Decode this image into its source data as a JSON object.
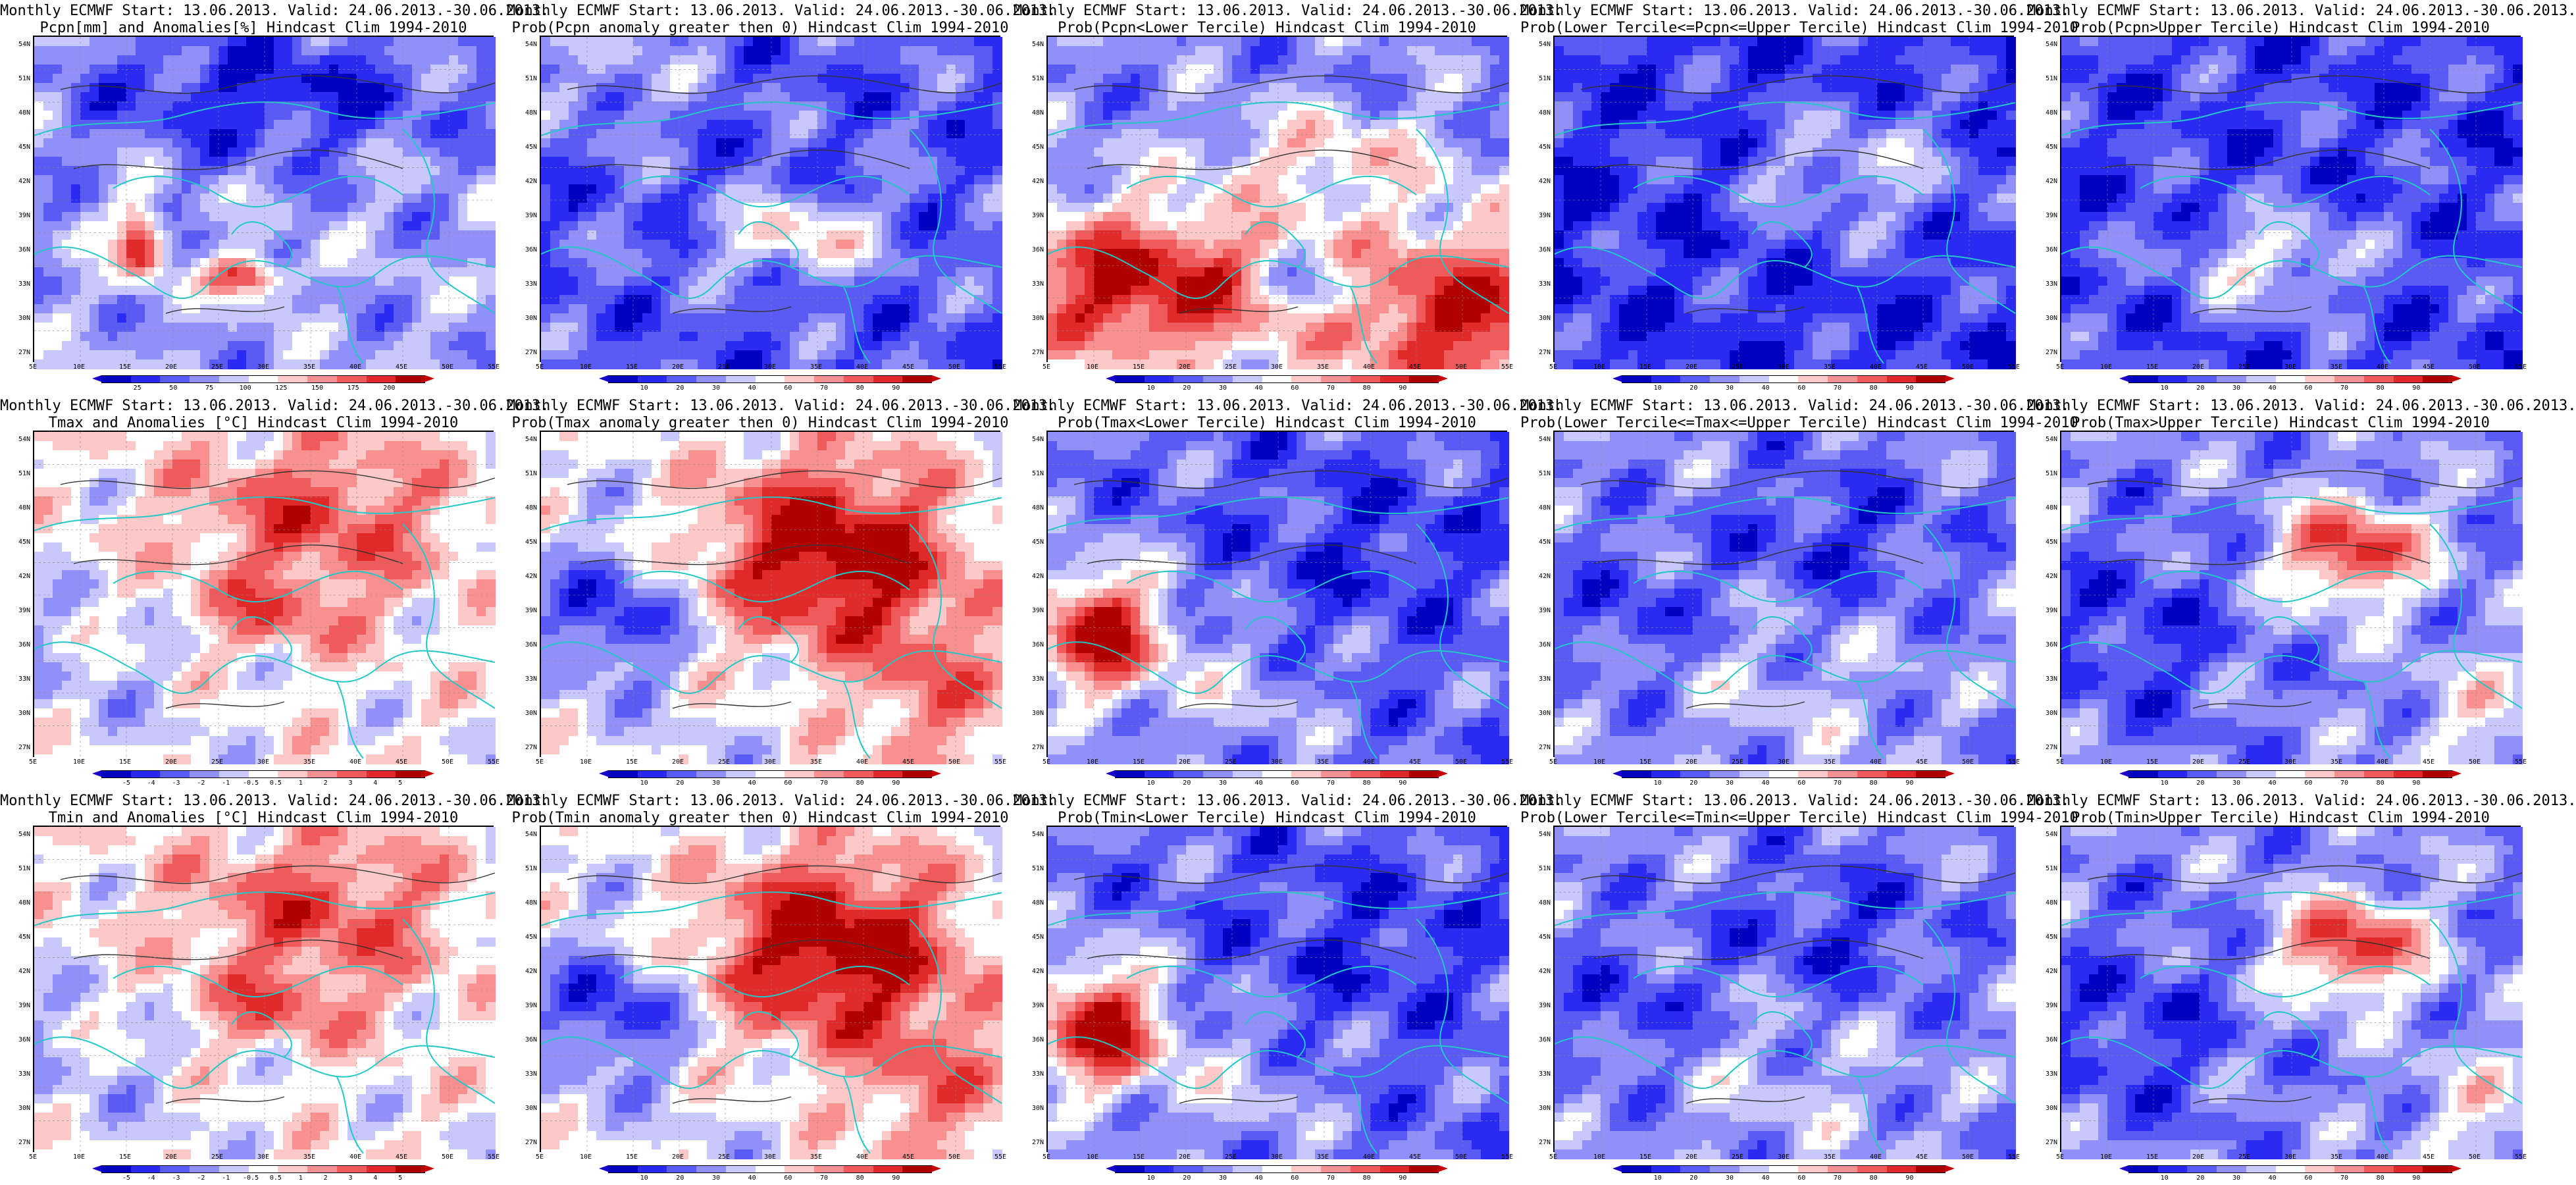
{
  "meta": {
    "coast_color": "#22c8c8",
    "contour_color": "#333333"
  },
  "axes": {
    "lat_labels": [
      "54N",
      "51N",
      "48N",
      "45N",
      "42N",
      "39N",
      "36N",
      "33N",
      "30N",
      "27N"
    ],
    "lon_labels": [
      "5E",
      "10E",
      "15E",
      "20E",
      "25E",
      "30E",
      "35E",
      "40E",
      "45E",
      "50E",
      "55E"
    ]
  },
  "panels": [
    {
      "line1": "Monthly ECMWF Start: 13.06.2013. Valid: 24.06.2013.-30.06.2013.",
      "line2": "Pcpn[mm] and Anomalies[%] Hindcast Clim 1994-2010",
      "kind": "anom",
      "pattern": "pcpn-anom",
      "ticks": [
        "25",
        "50",
        "75",
        "100",
        "125",
        "150",
        "175",
        "200"
      ]
    },
    {
      "line1": "Monthly ECMWF Start: 13.06.2013. Valid: 24.06.2013.-30.06.2013.",
      "line2": "Prob(Pcpn anomaly greater then 0) Hindcast Clim 1994-2010",
      "kind": "prob",
      "pattern": "pcpn-pos",
      "ticks": [
        "10",
        "20",
        "30",
        "40",
        "60",
        "70",
        "80",
        "90"
      ]
    },
    {
      "line1": "Monthly ECMWF Start: 13.06.2013. Valid: 24.06.2013.-30.06.2013.",
      "line2": "Prob(Pcpn<Lower Tercile) Hindcast Clim 1994-2010",
      "kind": "prob",
      "pattern": "pcpn-lower",
      "ticks": [
        "10",
        "20",
        "30",
        "40",
        "60",
        "70",
        "80",
        "90"
      ]
    },
    {
      "line1": "Monthly ECMWF Start: 13.06.2013. Valid: 24.06.2013.-30.06.2013.",
      "line2": "Prob(Lower Tercile<=Pcpn<=Upper Tercile) Hindcast Clim 1994-2010",
      "kind": "prob",
      "pattern": "pcpn-middle",
      "ticks": [
        "10",
        "20",
        "30",
        "40",
        "60",
        "70",
        "80",
        "90"
      ]
    },
    {
      "line1": "Monthly ECMWF Start: 13.06.2013. Valid: 24.06.2013.-30.06.2013.",
      "line2": "Prob(Pcpn>Upper Tercile) Hindcast Clim 1994-2010",
      "kind": "prob",
      "pattern": "pcpn-upper",
      "ticks": [
        "10",
        "20",
        "30",
        "40",
        "60",
        "70",
        "80",
        "90"
      ]
    },
    {
      "line1": "Monthly ECMWF Start: 13.06.2013. Valid: 24.06.2013.-30.06.2013.",
      "line2": "Tmax and Anomalies [°C] Hindcast Clim 1994-2010",
      "kind": "anom",
      "pattern": "warm-east-light",
      "ticks": [
        "-5",
        "-4",
        "-3",
        "-2",
        "-1",
        "-0.5",
        "0.5",
        "1",
        "2",
        "3",
        "4",
        "5"
      ]
    },
    {
      "line1": "Monthly ECMWF Start: 13.06.2013. Valid: 24.06.2013.-30.06.2013.",
      "line2": "Prob(Tmax anomaly greater then 0) Hindcast Clim 1994-2010",
      "kind": "prob",
      "pattern": "warm-east",
      "ticks": [
        "10",
        "20",
        "30",
        "40",
        "60",
        "70",
        "80",
        "90"
      ]
    },
    {
      "line1": "Monthly ECMWF Start: 13.06.2013. Valid: 24.06.2013.-30.06.2013.",
      "line2": "Prob(Tmax<Lower Tercile) Hindcast Clim 1994-2010",
      "kind": "prob",
      "pattern": "cold-west-red",
      "ticks": [
        "10",
        "20",
        "30",
        "40",
        "60",
        "70",
        "80",
        "90"
      ]
    },
    {
      "line1": "Monthly ECMWF Start: 13.06.2013. Valid: 24.06.2013.-30.06.2013.",
      "line2": "Prob(Lower Tercile<=Tmax<=Upper Tercile) Hindcast Clim 1994-2010",
      "kind": "prob",
      "pattern": "middle-blue",
      "ticks": [
        "10",
        "20",
        "30",
        "40",
        "60",
        "70",
        "80",
        "90"
      ]
    },
    {
      "line1": "Monthly ECMWF Start: 13.06.2013. Valid: 24.06.2013.-30.06.2013.",
      "line2": "Prob(Tmax>Upper Tercile) Hindcast Clim 1994-2010",
      "kind": "prob",
      "pattern": "upper-center",
      "ticks": [
        "10",
        "20",
        "30",
        "40",
        "60",
        "70",
        "80",
        "90"
      ]
    },
    {
      "line1": "Monthly ECMWF Start: 13.06.2013. Valid: 24.06.2013.-30.06.2013.",
      "line2": "Tmin and Anomalies [°C] Hindcast Clim 1994-2010",
      "kind": "anom",
      "pattern": "warm-east-light",
      "ticks": [
        "-5",
        "-4",
        "-3",
        "-2",
        "-1",
        "-0.5",
        "0.5",
        "1",
        "2",
        "3",
        "4",
        "5"
      ]
    },
    {
      "line1": "Monthly ECMWF Start: 13.06.2013. Valid: 24.06.2013.-30.06.2013.",
      "line2": "Prob(Tmin anomaly greater then 0) Hindcast Clim 1994-2010",
      "kind": "prob",
      "pattern": "warm-east",
      "ticks": [
        "10",
        "20",
        "30",
        "40",
        "60",
        "70",
        "80",
        "90"
      ]
    },
    {
      "line1": "Monthly ECMWF Start: 13.06.2013. Valid: 24.06.2013.-30.06.2013.",
      "line2": "Prob(Tmin<Lower Tercile) Hindcast Clim 1994-2010",
      "kind": "prob",
      "pattern": "cold-west-red",
      "ticks": [
        "10",
        "20",
        "30",
        "40",
        "60",
        "70",
        "80",
        "90"
      ]
    },
    {
      "line1": "Monthly ECMWF Start: 13.06.2013. Valid: 24.06.2013.-30.06.2013.",
      "line2": "Prob(Lower Tercile<=Tmin<=Upper Tercile) Hindcast Clim 1994-2010",
      "kind": "prob",
      "pattern": "middle-blue",
      "ticks": [
        "10",
        "20",
        "30",
        "40",
        "60",
        "70",
        "80",
        "90"
      ]
    },
    {
      "line1": "Monthly ECMWF Start: 13.06.2013. Valid: 24.06.2013.-30.06.2013.",
      "line2": "Prob(Tmin>Upper Tercile) Hindcast Clim 1994-2010",
      "kind": "prob",
      "pattern": "upper-center",
      "ticks": [
        "10",
        "20",
        "30",
        "40",
        "60",
        "70",
        "80",
        "90"
      ]
    }
  ]
}
